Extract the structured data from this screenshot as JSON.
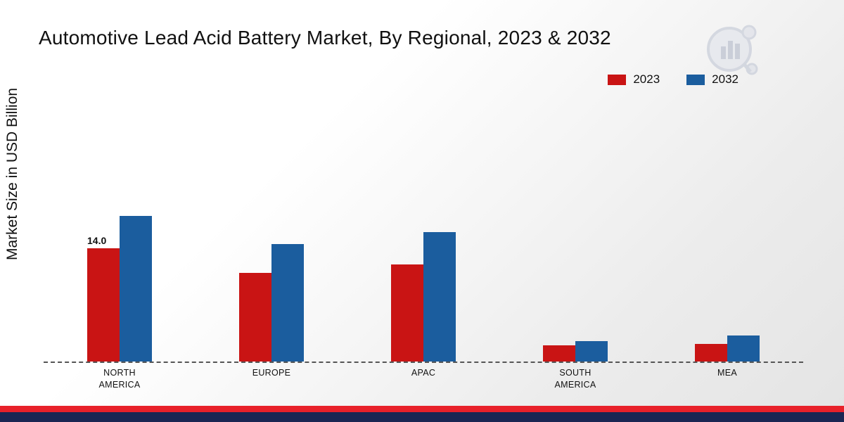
{
  "title": "Automotive Lead Acid Battery Market, By Regional, 2023 & 2032",
  "y_axis_label": "Market Size in USD Billion",
  "legend": {
    "items": [
      {
        "label": "2023",
        "color": "#c91414"
      },
      {
        "label": "2032",
        "color": "#1b5d9e"
      }
    ]
  },
  "footer": {
    "red_strip_color": "#e8212a",
    "navy_strip_color": "#1b2653"
  },
  "brand": {
    "logo_icon": "bar-chart-magnifier-watermark"
  },
  "chart_data": {
    "type": "bar",
    "title": "Automotive Lead Acid Battery Market, By Regional, 2023 & 2032",
    "ylabel": "Market Size in USD Billion",
    "xlabel": "",
    "categories": [
      "NORTH\nAMERICA",
      "EUROPE",
      "APAC",
      "SOUTH\nAMERICA",
      "MEA"
    ],
    "series": [
      {
        "name": "2023",
        "color": "#c91414",
        "values": [
          14.0,
          11.0,
          12.0,
          2.0,
          2.2
        ]
      },
      {
        "name": "2032",
        "color": "#1b5d9e",
        "values": [
          18.0,
          14.5,
          16.0,
          2.5,
          3.2
        ]
      }
    ],
    "annotations": [
      {
        "series": 0,
        "category": 0,
        "text": "14.0"
      }
    ],
    "baseline_style": "dashed",
    "ylim": [
      0,
      20
    ],
    "grid": false,
    "legend_position": "top-right"
  }
}
